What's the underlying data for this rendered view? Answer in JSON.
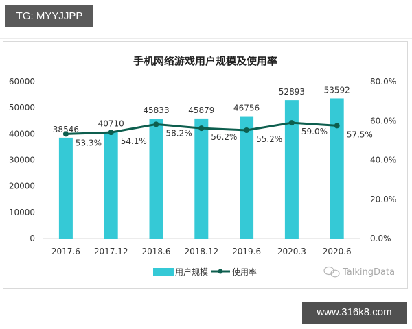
{
  "watermarks": {
    "top_left": "TG: MYYJJPP",
    "bottom_right": "www.316k8.com",
    "source_logo": "TalkingData"
  },
  "colors": {
    "bar": "#35c9d6",
    "line": "#0d5e4e",
    "axis_text": "#333333",
    "baseline": "#d9d9d9"
  },
  "chart_data": {
    "type": "bar+line",
    "title": "手机网络游戏用户规模及使用率",
    "categories": [
      "2017.6",
      "2017.12",
      "2018.6",
      "2018.12",
      "2019.6",
      "2020.3",
      "2020.6"
    ],
    "series": [
      {
        "name": "用户规模",
        "type": "bar",
        "axis": "left",
        "values": [
          38546,
          40710,
          45833,
          45879,
          46756,
          52893,
          53592
        ],
        "labels": [
          "38546",
          "40710",
          "45833",
          "45879",
          "46756",
          "52893",
          "53592"
        ]
      },
      {
        "name": "使用率",
        "type": "line",
        "axis": "right",
        "values": [
          53.3,
          54.1,
          58.2,
          56.2,
          55.2,
          59.0,
          57.5
        ],
        "labels": [
          "53.3%",
          "54.1%",
          "58.2%",
          "56.2%",
          "55.2%",
          "59.0%",
          "57.5%"
        ]
      }
    ],
    "y_left": {
      "range": [
        0,
        60000
      ],
      "ticks": [
        "0",
        "10000",
        "20000",
        "30000",
        "40000",
        "50000",
        "60000"
      ]
    },
    "y_right": {
      "range": [
        0,
        80
      ],
      "ticks": [
        "0.0%",
        "20.0%",
        "40.0%",
        "60.0%",
        "80.0%"
      ]
    },
    "xlabel": "",
    "ylabel": "",
    "grid": false,
    "legend_position": "bottom",
    "legend": [
      "用户规模",
      "使用率"
    ],
    "source": "TalkingData"
  }
}
